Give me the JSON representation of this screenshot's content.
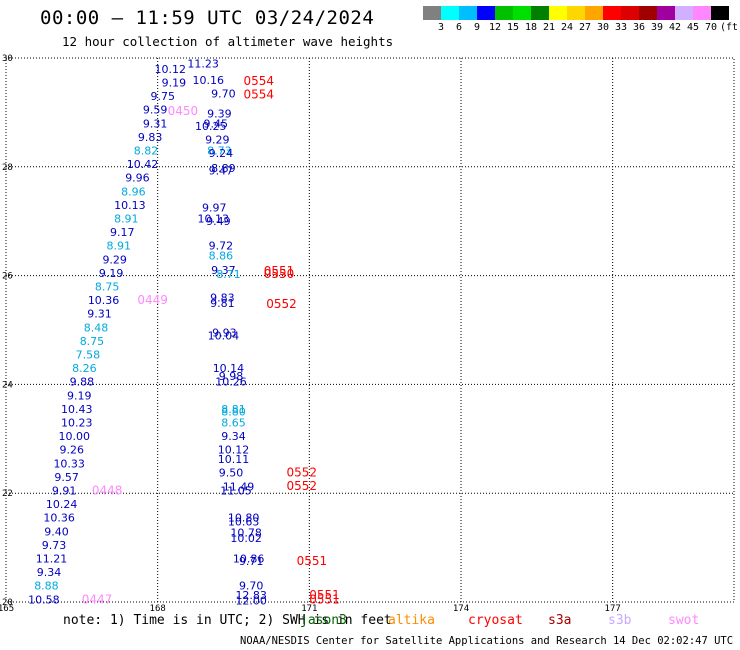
{
  "title": "00:00 – 11:59 UTC 03/24/2024",
  "subtitle": "12 hour collection of altimeter wave heights",
  "colorbar": {
    "colors": [
      "#808080",
      "#00ffff",
      "#00bfff",
      "#0000ff",
      "#00c000",
      "#00e000",
      "#008000",
      "#ffff00",
      "#ffd700",
      "#ffa500",
      "#ff0000",
      "#dd0000",
      "#a00000",
      "#a000a0",
      "#d0b0ff",
      "#ff88ff",
      "#000000"
    ],
    "labels": [
      "3",
      "6",
      "9",
      "12",
      "15",
      "18",
      "21",
      "24",
      "27",
      "30",
      "33",
      "36",
      "39",
      "42",
      "45",
      "70",
      "(ft)"
    ]
  },
  "axes": {
    "x_ticks": [
      "165",
      "168",
      "171",
      "174",
      "177"
    ],
    "y_ticks": [
      "30",
      "28",
      "26",
      "24",
      "22",
      "20"
    ]
  },
  "chart_data": {
    "type": "scatter",
    "x_range": [
      165,
      179.4
    ],
    "y_range": [
      20,
      30
    ],
    "points": [
      {
        "lon": 168.25,
        "lat": 29.8,
        "t": "10.12",
        "c": "#0000c0"
      },
      {
        "lon": 168.9,
        "lat": 29.9,
        "t": "11.23",
        "c": "#0000c0"
      },
      {
        "lon": 168.32,
        "lat": 29.55,
        "t": "9.19",
        "c": "#0000c0"
      },
      {
        "lon": 169.0,
        "lat": 29.6,
        "t": "10.16",
        "c": "#0000c0"
      },
      {
        "lon": 169.3,
        "lat": 29.35,
        "t": "9.70",
        "c": "#0000c0"
      },
      {
        "lon": 168.1,
        "lat": 29.3,
        "t": "9.75",
        "c": "#0000c0"
      },
      {
        "lon": 167.95,
        "lat": 29.05,
        "t": "9.59",
        "c": "#0000c0"
      },
      {
        "lon": 169.22,
        "lat": 28.98,
        "t": "9.39",
        "c": "#0000c0"
      },
      {
        "lon": 167.95,
        "lat": 28.8,
        "t": "9.31",
        "c": "#0000c0"
      },
      {
        "lon": 169.15,
        "lat": 28.8,
        "t": "9.45",
        "c": "#0000c0"
      },
      {
        "lon": 169.05,
        "lat": 28.75,
        "t": "10.25",
        "c": "#0000c0"
      },
      {
        "lon": 167.85,
        "lat": 28.55,
        "t": "9.83",
        "c": "#0000c0"
      },
      {
        "lon": 169.18,
        "lat": 28.5,
        "t": "9.29",
        "c": "#0000c0"
      },
      {
        "lon": 167.77,
        "lat": 28.3,
        "t": "8.82",
        "c": "#00aadd"
      },
      {
        "lon": 169.22,
        "lat": 28.3,
        "t": "8.73",
        "c": "#00aadd"
      },
      {
        "lon": 169.25,
        "lat": 28.25,
        "t": "9.24",
        "c": "#0000c0"
      },
      {
        "lon": 167.7,
        "lat": 28.05,
        "t": "10.42",
        "c": "#0000c0"
      },
      {
        "lon": 169.3,
        "lat": 27.98,
        "t": "8.89",
        "c": "#0000c0"
      },
      {
        "lon": 169.25,
        "lat": 27.93,
        "t": "9.47",
        "c": "#0000c0"
      },
      {
        "lon": 167.6,
        "lat": 27.8,
        "t": "9.96",
        "c": "#0000c0"
      },
      {
        "lon": 167.52,
        "lat": 27.55,
        "t": "8.96",
        "c": "#00aadd"
      },
      {
        "lon": 167.45,
        "lat": 27.3,
        "t": "10.13",
        "c": "#0000c0"
      },
      {
        "lon": 169.12,
        "lat": 27.25,
        "t": "9.97",
        "c": "#0000c0"
      },
      {
        "lon": 167.38,
        "lat": 27.05,
        "t": "8.91",
        "c": "#00aadd"
      },
      {
        "lon": 169.1,
        "lat": 27.05,
        "t": "10.13",
        "c": "#0000c0"
      },
      {
        "lon": 169.2,
        "lat": 27.0,
        "t": "9.49",
        "c": "#0000c0"
      },
      {
        "lon": 167.3,
        "lat": 26.8,
        "t": "9.17",
        "c": "#0000c0"
      },
      {
        "lon": 167.23,
        "lat": 26.55,
        "t": "8.91",
        "c": "#00aadd"
      },
      {
        "lon": 169.25,
        "lat": 26.55,
        "t": "9.72",
        "c": "#0000c0"
      },
      {
        "lon": 169.25,
        "lat": 26.37,
        "t": "8.86",
        "c": "#00aadd"
      },
      {
        "lon": 167.15,
        "lat": 26.3,
        "t": "9.29",
        "c": "#0000c0"
      },
      {
        "lon": 169.3,
        "lat": 26.1,
        "t": "9.37",
        "c": "#0000c0"
      },
      {
        "lon": 169.4,
        "lat": 26.03,
        "t": "8.71",
        "c": "#00aadd"
      },
      {
        "lon": 167.08,
        "lat": 26.05,
        "t": "9.19",
        "c": "#0000c0"
      },
      {
        "lon": 167.0,
        "lat": 25.8,
        "t": "8.75",
        "c": "#00aadd"
      },
      {
        "lon": 166.93,
        "lat": 25.55,
        "t": "10.36",
        "c": "#0000c0"
      },
      {
        "lon": 169.28,
        "lat": 25.6,
        "t": "9.83",
        "c": "#0000c0"
      },
      {
        "lon": 169.28,
        "lat": 25.5,
        "t": "9.81",
        "c": "#0000c0"
      },
      {
        "lon": 166.85,
        "lat": 25.3,
        "t": "9.31",
        "c": "#0000c0"
      },
      {
        "lon": 166.78,
        "lat": 25.05,
        "t": "8.48",
        "c": "#00aadd"
      },
      {
        "lon": 169.32,
        "lat": 24.95,
        "t": "9.93",
        "c": "#0000c0"
      },
      {
        "lon": 169.3,
        "lat": 24.9,
        "t": "10.04",
        "c": "#0000c0"
      },
      {
        "lon": 166.7,
        "lat": 24.8,
        "t": "8.75",
        "c": "#00aadd"
      },
      {
        "lon": 166.62,
        "lat": 24.55,
        "t": "7.58",
        "c": "#00aadd"
      },
      {
        "lon": 169.4,
        "lat": 24.3,
        "t": "10.14",
        "c": "#0000c0"
      },
      {
        "lon": 166.55,
        "lat": 24.3,
        "t": "8.26",
        "c": "#00aadd"
      },
      {
        "lon": 169.45,
        "lat": 24.15,
        "t": "9.98",
        "c": "#0000c0"
      },
      {
        "lon": 169.45,
        "lat": 24.05,
        "t": "10.26",
        "c": "#0000c0"
      },
      {
        "lon": 166.5,
        "lat": 24.05,
        "t": "9.88",
        "c": "#0000c0"
      },
      {
        "lon": 166.45,
        "lat": 23.8,
        "t": "9.19",
        "c": "#0000c0"
      },
      {
        "lon": 166.4,
        "lat": 23.55,
        "t": "10.43",
        "c": "#0000c0"
      },
      {
        "lon": 169.5,
        "lat": 23.55,
        "t": "8.81",
        "c": "#00aadd"
      },
      {
        "lon": 169.5,
        "lat": 23.5,
        "t": "8.80",
        "c": "#00aadd"
      },
      {
        "lon": 169.5,
        "lat": 23.3,
        "t": "8.65",
        "c": "#00aadd"
      },
      {
        "lon": 166.4,
        "lat": 23.3,
        "t": "10.23",
        "c": "#0000c0"
      },
      {
        "lon": 169.5,
        "lat": 23.05,
        "t": "9.34",
        "c": "#0000c0"
      },
      {
        "lon": 166.35,
        "lat": 23.05,
        "t": "10.00",
        "c": "#0000c0"
      },
      {
        "lon": 169.5,
        "lat": 22.8,
        "t": "10.12",
        "c": "#0000c0"
      },
      {
        "lon": 166.3,
        "lat": 22.8,
        "t": "9.26",
        "c": "#0000c0"
      },
      {
        "lon": 169.5,
        "lat": 22.63,
        "t": "10.11",
        "c": "#0000c0"
      },
      {
        "lon": 166.25,
        "lat": 22.55,
        "t": "10.33",
        "c": "#0000c0"
      },
      {
        "lon": 169.45,
        "lat": 22.38,
        "t": "9.50",
        "c": "#0000c0"
      },
      {
        "lon": 166.2,
        "lat": 22.3,
        "t": "9.57",
        "c": "#0000c0"
      },
      {
        "lon": 169.6,
        "lat": 22.12,
        "t": "11.49",
        "c": "#0000c0"
      },
      {
        "lon": 169.55,
        "lat": 22.05,
        "t": "11.05",
        "c": "#0000c0"
      },
      {
        "lon": 166.15,
        "lat": 22.05,
        "t": "9.91",
        "c": "#0000c0"
      },
      {
        "lon": 166.1,
        "lat": 21.8,
        "t": "10.24",
        "c": "#0000c0"
      },
      {
        "lon": 166.05,
        "lat": 21.55,
        "t": "10.36",
        "c": "#0000c0"
      },
      {
        "lon": 169.7,
        "lat": 21.55,
        "t": "10.80",
        "c": "#0000c0"
      },
      {
        "lon": 169.7,
        "lat": 21.48,
        "t": "10.63",
        "c": "#0000c0"
      },
      {
        "lon": 166.0,
        "lat": 21.3,
        "t": "9.40",
        "c": "#0000c0"
      },
      {
        "lon": 169.75,
        "lat": 21.28,
        "t": "10.78",
        "c": "#0000c0"
      },
      {
        "lon": 169.75,
        "lat": 21.18,
        "t": "10.02",
        "c": "#0000c0"
      },
      {
        "lon": 165.95,
        "lat": 21.05,
        "t": "9.73",
        "c": "#0000c0"
      },
      {
        "lon": 169.8,
        "lat": 20.8,
        "t": "10.86",
        "c": "#0000c0"
      },
      {
        "lon": 169.85,
        "lat": 20.75,
        "t": "9.71",
        "c": "#0000c0"
      },
      {
        "lon": 165.9,
        "lat": 20.8,
        "t": "11.21",
        "c": "#0000c0"
      },
      {
        "lon": 165.85,
        "lat": 20.55,
        "t": "9.34",
        "c": "#0000c0"
      },
      {
        "lon": 165.8,
        "lat": 20.3,
        "t": "8.88",
        "c": "#00aadd"
      },
      {
        "lon": 169.85,
        "lat": 20.3,
        "t": "9.70",
        "c": "#0000c0"
      },
      {
        "lon": 169.85,
        "lat": 20.13,
        "t": "12.83",
        "c": "#0000c0"
      },
      {
        "lon": 165.75,
        "lat": 20.05,
        "t": "10.58",
        "c": "#0000c0"
      },
      {
        "lon": 169.85,
        "lat": 20.03,
        "t": "12.00",
        "c": "#0000c0"
      }
    ],
    "pass_labels": [
      {
        "lon": 170.0,
        "lat": 29.58,
        "t": "0554",
        "c": "#ff0000"
      },
      {
        "lon": 170.0,
        "lat": 29.33,
        "t": "0554",
        "c": "#ff0000"
      },
      {
        "lon": 168.5,
        "lat": 29.03,
        "t": "0450",
        "c": "#ff88ff"
      },
      {
        "lon": 170.4,
        "lat": 26.08,
        "t": "0551",
        "c": "#ff0000"
      },
      {
        "lon": 170.4,
        "lat": 26.03,
        "t": "0550",
        "c": "#ff0000"
      },
      {
        "lon": 167.9,
        "lat": 25.55,
        "t": "0449",
        "c": "#ff88ff"
      },
      {
        "lon": 170.45,
        "lat": 25.48,
        "t": "0552",
        "c": "#ff0000"
      },
      {
        "lon": 170.85,
        "lat": 22.38,
        "t": "0552",
        "c": "#ff0000"
      },
      {
        "lon": 170.85,
        "lat": 22.13,
        "t": "0552",
        "c": "#ff0000"
      },
      {
        "lon": 167.0,
        "lat": 22.05,
        "t": "0448",
        "c": "#ff88ff"
      },
      {
        "lon": 171.05,
        "lat": 20.75,
        "t": "0551",
        "c": "#ff0000"
      },
      {
        "lon": 166.8,
        "lat": 20.05,
        "t": "0447",
        "c": "#ff88ff"
      },
      {
        "lon": 171.3,
        "lat": 20.13,
        "t": "0551",
        "c": "#ff0000"
      },
      {
        "lon": 171.3,
        "lat": 20.05,
        "t": "0551",
        "c": "#ff0000"
      }
    ]
  },
  "note_text": "note: 1) Time is in UTC; 2) SWH is in feet",
  "satellites": [
    {
      "name": "jason3",
      "color": "#006400"
    },
    {
      "name": "altika",
      "color": "#ff8c00"
    },
    {
      "name": "cryosat",
      "color": "#ff0000"
    },
    {
      "name": "s3a",
      "color": "#a00000"
    },
    {
      "name": "s3b",
      "color": "#c8a8ff"
    },
    {
      "name": "swot",
      "color": "#ff88ff"
    }
  ],
  "footer": "NOAA/NESDIS Center for Satellite Applications and Research   14 Dec 02:02:47 UTC 2024"
}
